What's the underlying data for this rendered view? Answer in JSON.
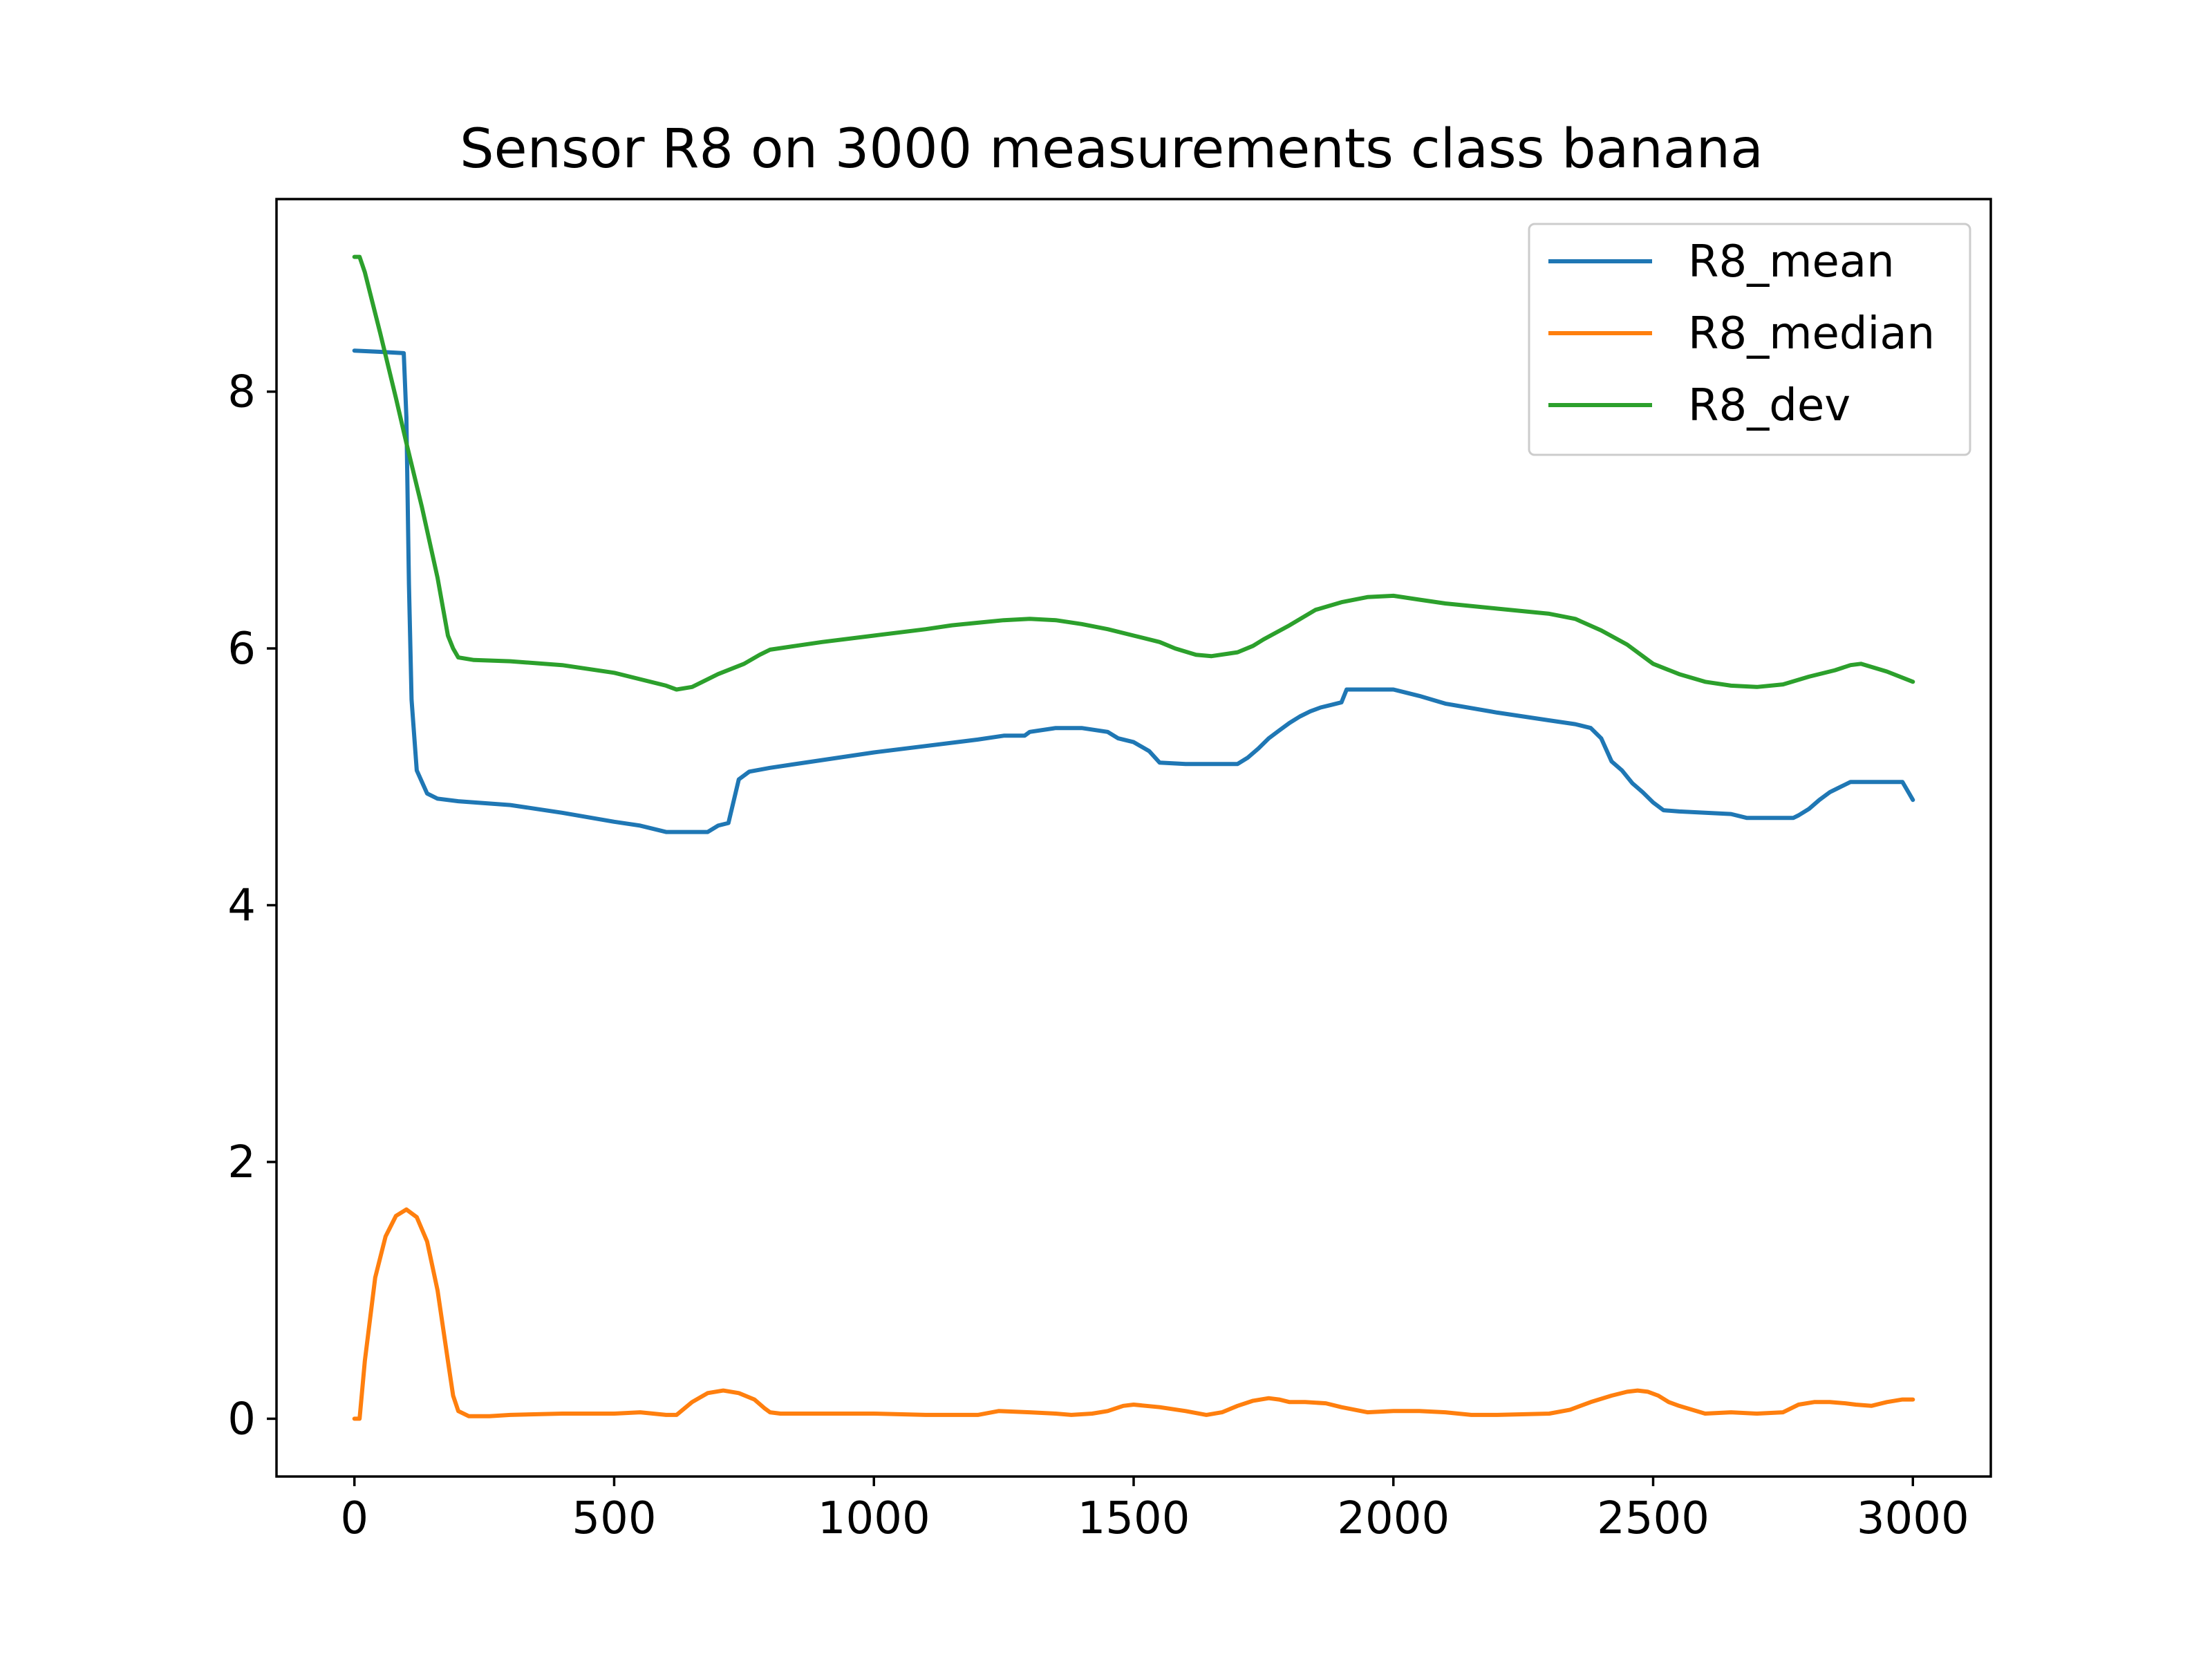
{
  "chart_data": {
    "type": "line",
    "title": "Sensor R8 on 3000 measurements class banana",
    "xlabel": "",
    "ylabel": "",
    "xlim": [
      -150,
      3150
    ],
    "ylim": [
      -0.45,
      9.5
    ],
    "xticks": [
      0,
      500,
      1000,
      1500,
      2000,
      2500,
      3000
    ],
    "yticks": [
      0,
      2,
      4,
      6,
      8
    ],
    "grid": false,
    "legend_position": "top-right",
    "series": [
      {
        "name": "R8_mean",
        "color": "#1f77b4",
        "x": [
          0,
          50,
          95,
          100,
          105,
          110,
          120,
          140,
          160,
          200,
          300,
          400,
          500,
          550,
          600,
          650,
          680,
          700,
          720,
          740,
          760,
          800,
          900,
          1000,
          1100,
          1200,
          1250,
          1290,
          1300,
          1350,
          1400,
          1450,
          1470,
          1500,
          1530,
          1550,
          1600,
          1700,
          1720,
          1740,
          1760,
          1780,
          1800,
          1820,
          1840,
          1860,
          1880,
          1900,
          1910,
          1950,
          2000,
          2050,
          2100,
          2200,
          2300,
          2350,
          2380,
          2400,
          2420,
          2440,
          2460,
          2480,
          2500,
          2520,
          2550,
          2600,
          2650,
          2680,
          2700,
          2770,
          2780,
          2800,
          2820,
          2840,
          2860,
          2880,
          2900,
          2950,
          2980,
          3000
        ],
        "values": [
          8.32,
          8.31,
          8.3,
          7.8,
          6.5,
          5.6,
          5.05,
          4.87,
          4.83,
          4.81,
          4.78,
          4.72,
          4.65,
          4.62,
          4.57,
          4.57,
          4.57,
          4.62,
          4.64,
          4.98,
          5.04,
          5.07,
          5.13,
          5.19,
          5.24,
          5.29,
          5.32,
          5.32,
          5.35,
          5.38,
          5.38,
          5.35,
          5.3,
          5.27,
          5.2,
          5.11,
          5.1,
          5.1,
          5.15,
          5.22,
          5.3,
          5.36,
          5.42,
          5.47,
          5.51,
          5.54,
          5.56,
          5.58,
          5.68,
          5.68,
          5.68,
          5.63,
          5.57,
          5.5,
          5.44,
          5.41,
          5.38,
          5.3,
          5.12,
          5.05,
          4.95,
          4.88,
          4.8,
          4.74,
          4.73,
          4.72,
          4.71,
          4.68,
          4.68,
          4.68,
          4.7,
          4.75,
          4.82,
          4.88,
          4.92,
          4.96,
          4.96,
          4.96,
          4.96,
          4.82
        ]
      },
      {
        "name": "R8_median",
        "color": "#ff7f0e",
        "x": [
          0,
          10,
          20,
          40,
          60,
          80,
          100,
          120,
          140,
          160,
          180,
          190,
          200,
          220,
          260,
          300,
          400,
          500,
          550,
          600,
          620,
          650,
          680,
          710,
          740,
          770,
          790,
          800,
          820,
          900,
          1000,
          1100,
          1200,
          1240,
          1300,
          1350,
          1380,
          1420,
          1450,
          1480,
          1500,
          1550,
          1600,
          1640,
          1670,
          1700,
          1730,
          1760,
          1780,
          1800,
          1830,
          1870,
          1900,
          1950,
          2000,
          2050,
          2100,
          2150,
          2200,
          2300,
          2340,
          2380,
          2420,
          2450,
          2470,
          2490,
          2510,
          2530,
          2550,
          2600,
          2650,
          2700,
          2750,
          2780,
          2810,
          2840,
          2870,
          2890,
          2920,
          2950,
          2980,
          3000
        ],
        "values": [
          0.0,
          0.0,
          0.45,
          1.1,
          1.42,
          1.58,
          1.63,
          1.57,
          1.38,
          1.0,
          0.45,
          0.18,
          0.06,
          0.02,
          0.02,
          0.03,
          0.04,
          0.04,
          0.05,
          0.03,
          0.03,
          0.13,
          0.2,
          0.22,
          0.2,
          0.15,
          0.08,
          0.05,
          0.04,
          0.04,
          0.04,
          0.03,
          0.03,
          0.06,
          0.05,
          0.04,
          0.03,
          0.04,
          0.06,
          0.1,
          0.11,
          0.09,
          0.06,
          0.03,
          0.05,
          0.1,
          0.14,
          0.16,
          0.15,
          0.13,
          0.13,
          0.12,
          0.09,
          0.05,
          0.06,
          0.06,
          0.05,
          0.03,
          0.03,
          0.04,
          0.07,
          0.13,
          0.18,
          0.21,
          0.22,
          0.21,
          0.18,
          0.13,
          0.1,
          0.04,
          0.05,
          0.04,
          0.05,
          0.11,
          0.13,
          0.13,
          0.12,
          0.11,
          0.1,
          0.13,
          0.15,
          0.15
        ]
      },
      {
        "name": "R8_dev",
        "color": "#2ca02c",
        "x": [
          0,
          10,
          20,
          50,
          80,
          100,
          130,
          160,
          180,
          190,
          200,
          230,
          300,
          400,
          500,
          550,
          600,
          620,
          650,
          700,
          750,
          780,
          800,
          850,
          900,
          1000,
          1100,
          1150,
          1200,
          1250,
          1300,
          1350,
          1400,
          1450,
          1500,
          1550,
          1580,
          1620,
          1650,
          1700,
          1730,
          1750,
          1800,
          1850,
          1900,
          1950,
          2000,
          2050,
          2100,
          2200,
          2300,
          2350,
          2400,
          2450,
          2500,
          2550,
          2600,
          2650,
          2700,
          2750,
          2800,
          2850,
          2880,
          2900,
          2950,
          3000
        ],
        "values": [
          9.05,
          9.05,
          8.93,
          8.45,
          7.95,
          7.6,
          7.1,
          6.55,
          6.1,
          6.0,
          5.93,
          5.91,
          5.9,
          5.87,
          5.81,
          5.76,
          5.71,
          5.68,
          5.7,
          5.8,
          5.88,
          5.95,
          5.99,
          6.02,
          6.05,
          6.1,
          6.15,
          6.18,
          6.2,
          6.22,
          6.23,
          6.22,
          6.19,
          6.15,
          6.1,
          6.05,
          6.0,
          5.95,
          5.94,
          5.97,
          6.02,
          6.07,
          6.18,
          6.3,
          6.36,
          6.4,
          6.41,
          6.38,
          6.35,
          6.31,
          6.27,
          6.23,
          6.14,
          6.03,
          5.88,
          5.8,
          5.74,
          5.71,
          5.7,
          5.72,
          5.78,
          5.83,
          5.87,
          5.88,
          5.82,
          5.74
        ]
      }
    ]
  }
}
